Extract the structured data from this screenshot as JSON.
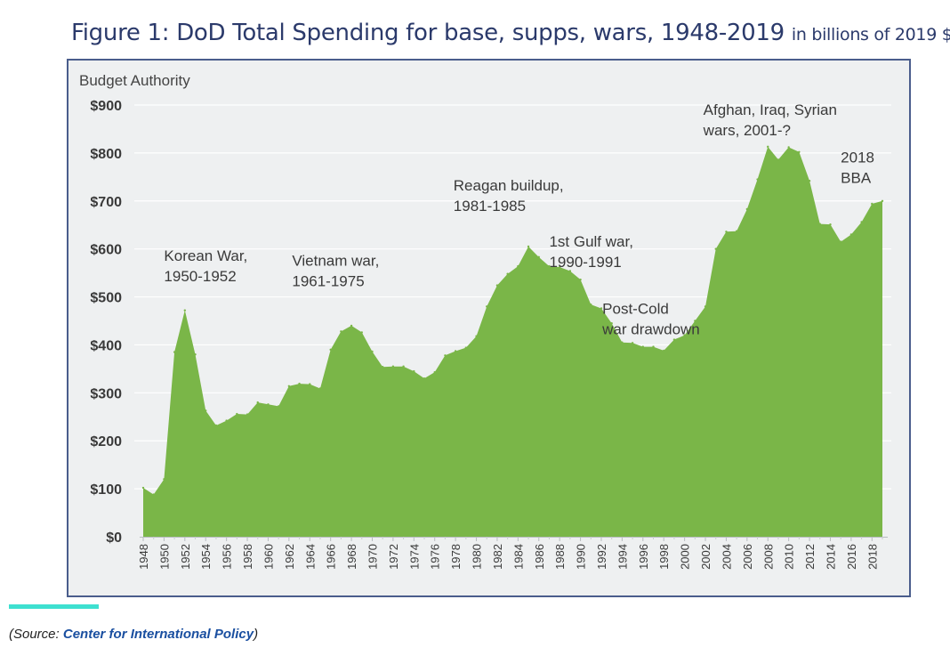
{
  "figure": {
    "title_prefix": "Figure 1: DoD Total Spending for base, supps, wars, 1948-2019",
    "title_suffix": "in billions of 2019 $"
  },
  "source": {
    "prefix": "(Source: ",
    "link": "Center for International Policy",
    "suffix": ")"
  },
  "colors": {
    "area_fill": "#7ab648",
    "plot_bg": "#eef0f1",
    "title": "#2b3a6b",
    "accent": "#3ee0d0"
  },
  "chart_data": {
    "type": "area",
    "title": "Figure 1: DoD Total Spending for base, supps, wars, 1948-2019 in billions of 2019 $",
    "ylabel": "Budget Authority",
    "xlabel": "",
    "ylim": [
      0,
      900
    ],
    "yticks": [
      0,
      100,
      200,
      300,
      400,
      500,
      600,
      700,
      800,
      900
    ],
    "ytick_labels": [
      "$0",
      "$100",
      "$200",
      "$300",
      "$400",
      "$500",
      "$600",
      "$700",
      "$800",
      "$900"
    ],
    "xtick_labels": [
      "1948",
      "1950",
      "1952",
      "1954",
      "1956",
      "1958",
      "1960",
      "1962",
      "1964",
      "1966",
      "1968",
      "1970",
      "1972",
      "1974",
      "1976",
      "1978",
      "1980",
      "1982",
      "1984",
      "1986",
      "1988",
      "1990",
      "1992",
      "1994",
      "1996",
      "1998",
      "2000",
      "2002",
      "2004",
      "2006",
      "2008",
      "2010",
      "2012",
      "2014",
      "2016",
      "2018"
    ],
    "grid": "horizontal",
    "x": [
      1948,
      1949,
      1950,
      1951,
      1952,
      1953,
      1954,
      1955,
      1956,
      1957,
      1958,
      1959,
      1960,
      1961,
      1962,
      1963,
      1964,
      1965,
      1966,
      1967,
      1968,
      1969,
      1970,
      1971,
      1972,
      1973,
      1974,
      1975,
      1976,
      1977,
      1978,
      1979,
      1980,
      1981,
      1982,
      1983,
      1984,
      1985,
      1986,
      1987,
      1988,
      1989,
      1990,
      1991,
      1992,
      1993,
      1994,
      1995,
      1996,
      1997,
      1998,
      1999,
      2000,
      2001,
      2002,
      2003,
      2004,
      2005,
      2006,
      2007,
      2008,
      2009,
      2010,
      2011,
      2012,
      2013,
      2014,
      2015,
      2016,
      2017,
      2018,
      2019
    ],
    "values": [
      102,
      88,
      120,
      385,
      472,
      380,
      263,
      232,
      242,
      256,
      255,
      280,
      276,
      272,
      314,
      319,
      318,
      309,
      390,
      428,
      440,
      426,
      386,
      354,
      355,
      355,
      345,
      330,
      343,
      378,
      387,
      394,
      418,
      480,
      524,
      548,
      564,
      605,
      583,
      564,
      562,
      554,
      536,
      484,
      476,
      445,
      405,
      404,
      396,
      396,
      388,
      411,
      420,
      450,
      480,
      600,
      636,
      637,
      683,
      745,
      813,
      786,
      812,
      802,
      742,
      652,
      651,
      615,
      630,
      656,
      694,
      700
    ],
    "annotations": [
      {
        "text": "Korean War,",
        "text2": "1950-1952",
        "x": 1950.0,
        "y": 575
      },
      {
        "text": "Vietnam war,",
        "text2": "1961-1975",
        "x": 1962.3,
        "y": 565
      },
      {
        "text": "Reagan buildup,",
        "text2": "1981-1985",
        "x": 1977.8,
        "y": 722
      },
      {
        "text": "1st Gulf war,",
        "text2": "1990-1991",
        "x": 1987.0,
        "y": 605
      },
      {
        "text": "Post-Cold",
        "text2": "war drawdown",
        "x": 1992.1,
        "y": 465
      },
      {
        "text": "Afghan, Iraq, Syrian",
        "text2": "wars, 2001-?",
        "x": 2001.8,
        "y": 880
      },
      {
        "text": "2018",
        "text2": "BBA",
        "x": 2015.0,
        "y": 780
      }
    ]
  }
}
